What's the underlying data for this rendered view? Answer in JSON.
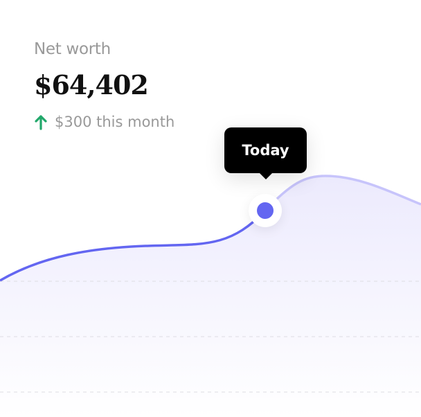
{
  "summary": {
    "label": "Net worth",
    "value": "$64,402",
    "change": "$300 this month",
    "change_icon": "arrow-up-icon"
  },
  "tooltip": {
    "label": "Today"
  },
  "colors": {
    "accent": "#6366f1",
    "accent_light": "#c7c4fb",
    "positive": "#22a86b",
    "muted_text": "#999999"
  }
}
